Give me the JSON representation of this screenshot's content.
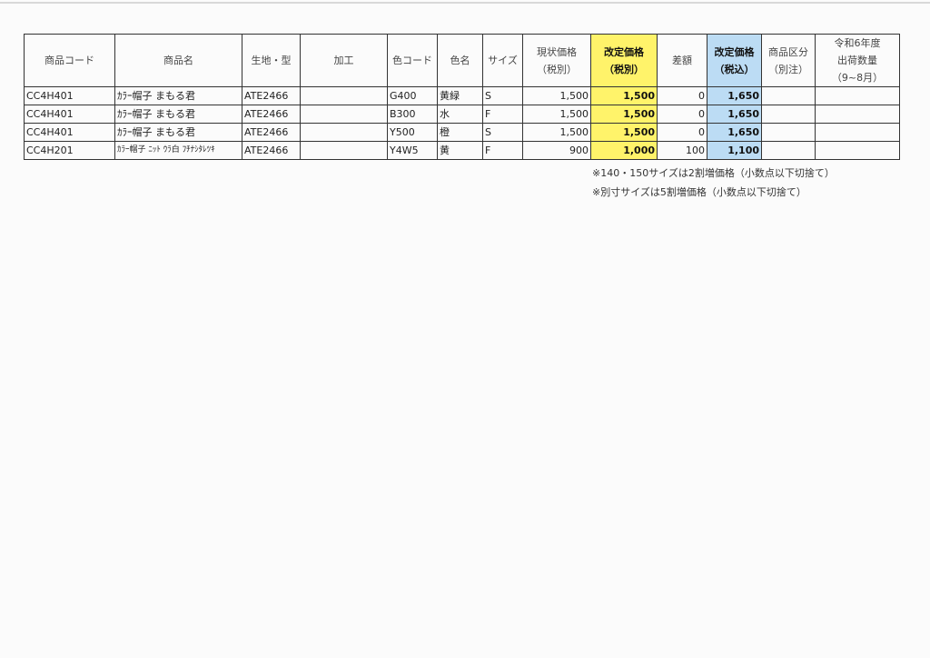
{
  "table": {
    "headers": [
      "商品コード",
      "商品名",
      "生地・型",
      "加工",
      "色コード",
      "色名",
      "サイズ",
      "現状価格\n（税別）",
      "改定価格\n（税別）",
      "差額",
      "改定価格\n（税込）",
      "商品区分\n（別注）",
      "令和6年度\n出荷数量\n（9~8月）"
    ],
    "rows": [
      [
        "CC4H401",
        "ｶﾗｰ帽子 まもる君",
        "ATE2466",
        "",
        "G400",
        "黄緑",
        "S",
        "1,500",
        "1,500",
        "0",
        "1,650",
        "",
        ""
      ],
      [
        "CC4H401",
        "ｶﾗｰ帽子 まもる君",
        "ATE2466",
        "",
        "B300",
        "水",
        "F",
        "1,500",
        "1,500",
        "0",
        "1,650",
        "",
        ""
      ],
      [
        "CC4H401",
        "ｶﾗｰ帽子 まもる君",
        "ATE2466",
        "",
        "Y500",
        "橙",
        "S",
        "1,500",
        "1,500",
        "0",
        "1,650",
        "",
        ""
      ],
      [
        "CC4H201",
        "ｶﾗｰ帽子 ﾆｯﾄ ｳﾗ白 ﾌﾁﾅｼﾀﾚﾂｷ",
        "ATE2466",
        "",
        "Y4W5",
        "黄",
        "F",
        "900",
        "1,000",
        "100",
        "1,100",
        "",
        ""
      ]
    ]
  },
  "notes": [
    "※140・150サイズは2割増価格（小数点以下切捨て）",
    "※別寸サイズは5割増価格（小数点以下切捨て）"
  ],
  "colors": {
    "highlight_yellow": "#fff36a",
    "highlight_blue": "#bcdcf4"
  }
}
